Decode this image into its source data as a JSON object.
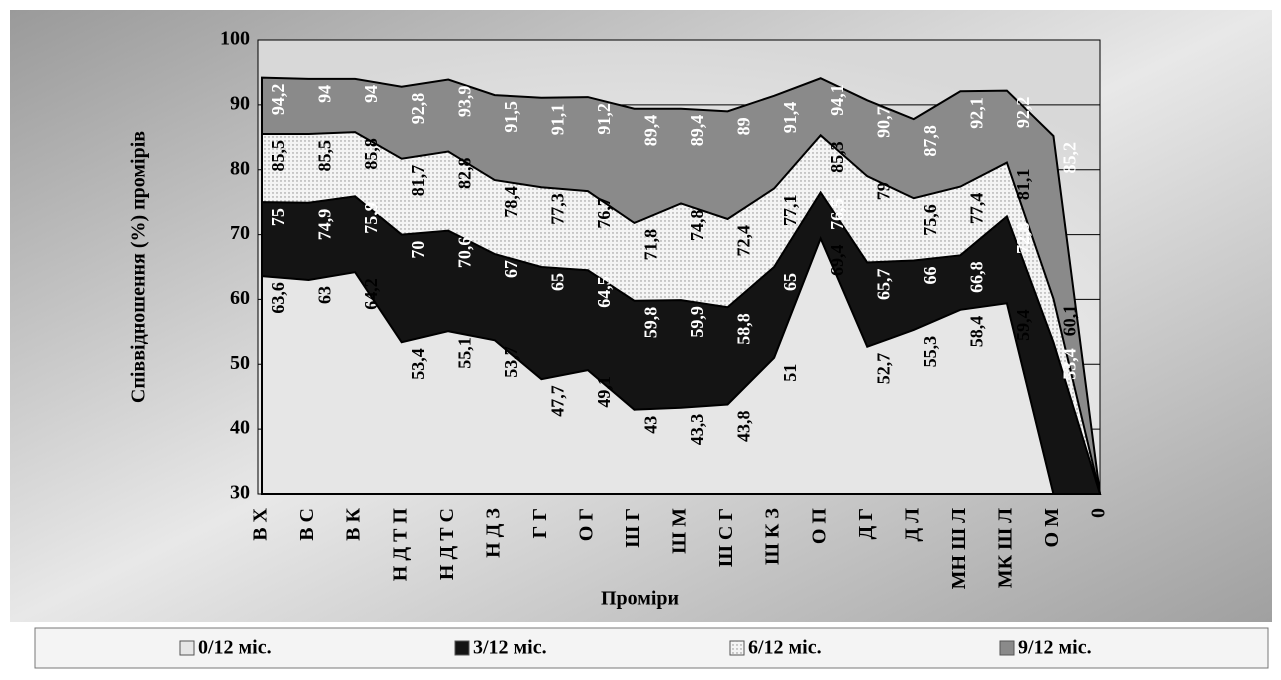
{
  "chart_data": {
    "type": "area",
    "y_label": "Співвідношення (%) промірів",
    "x_label": "Проміри",
    "categories": [
      "В Х",
      "В С",
      "В К",
      "Н Д Т П",
      "Н Д Т С",
      "Н Д З",
      "Г Г",
      "О Г",
      "Ш Г",
      "Ш М",
      "Ш С Г",
      "Ш К З",
      "О П",
      "Д Г",
      "Д Л",
      "МН Ш Л",
      "МК Ш Л",
      "О М",
      "0"
    ],
    "ylim": [
      30,
      100
    ],
    "yticks": [
      30,
      40,
      50,
      60,
      70,
      80,
      90,
      100
    ],
    "grid": true,
    "legend": "bottom",
    "series": [
      {
        "name": "0/12 міс.",
        "color": "#e6e6e6",
        "values": [
          63.6,
          63,
          64.2,
          53.4,
          55.1,
          53.7,
          47.7,
          49.1,
          43,
          43.3,
          43.8,
          51,
          69.4,
          52.7,
          55.3,
          58.4,
          59.4,
          null,
          null
        ],
        "value_labels": [
          "63,6",
          "63",
          "64,2",
          "53,4",
          "55,1",
          "53,7",
          "47,7",
          "49,1",
          "43",
          "43,3",
          "43,8",
          "51",
          "69,4",
          "52,7",
          "55,3",
          "58,4",
          "59,4",
          null,
          null
        ]
      },
      {
        "name": "3/12 міс.",
        "color": "#141414",
        "values": [
          75,
          74.9,
          75.9,
          70,
          70.6,
          67,
          65,
          64.5,
          59.8,
          59.9,
          58.8,
          65,
          76.5,
          65.7,
          66,
          66.8,
          72.8,
          53.4,
          null
        ],
        "value_labels": [
          "75",
          "74,9",
          "75,9",
          "70",
          "70,6",
          "67",
          "65",
          "64,5",
          "59,8",
          "59,9",
          "58,8",
          "65",
          "76,5",
          "65,7",
          "66",
          "66,8",
          "72,8",
          "53,4",
          null
        ]
      },
      {
        "name": "6/12 міс.",
        "color": "#f2f2f2",
        "values": [
          85.5,
          85.5,
          85.8,
          81.7,
          82.8,
          78.4,
          77.3,
          76.7,
          71.8,
          74.8,
          72.4,
          77.1,
          85.3,
          79,
          75.6,
          77.4,
          81.1,
          60.1,
          null
        ],
        "value_labels": [
          "85,5",
          "85,5",
          "85,8",
          "81,7",
          "82,8",
          "78,4",
          "77,3",
          "76,7",
          "71,8",
          "74,8",
          "72,4",
          "77,1",
          "85,3",
          "79",
          "75,6",
          "77,4",
          "81,1",
          "60,1",
          null
        ]
      },
      {
        "name": "9/12 міс.",
        "color": "#8a8a8a",
        "values": [
          94.2,
          94,
          94,
          92.8,
          93.9,
          91.5,
          91.1,
          91.2,
          89.4,
          89.4,
          89,
          91.4,
          94.1,
          90.7,
          87.8,
          92.1,
          92.2,
          85.2,
          null
        ],
        "value_labels": [
          "94,2",
          "94",
          "94",
          "92,8",
          "93,9",
          "91,5",
          "91,1",
          "91,2",
          "89,4",
          "89,4",
          "89",
          "91,4",
          "94,1",
          "90,7",
          "87,8",
          "92,1",
          "92,2",
          "85,2",
          null
        ]
      }
    ]
  }
}
